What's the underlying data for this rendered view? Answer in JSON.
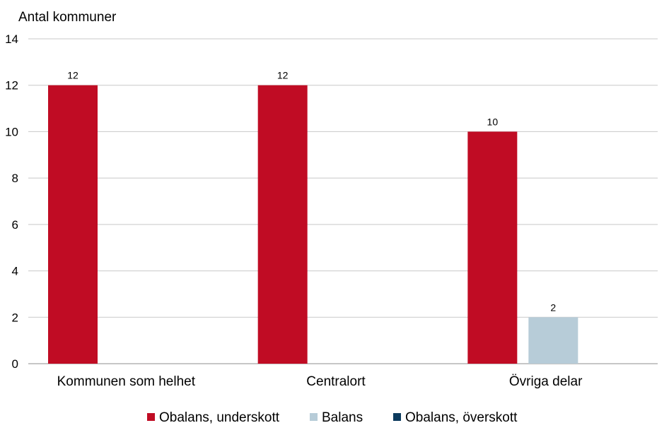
{
  "chart_data": {
    "type": "bar",
    "ylabel": "Antal kommuner",
    "xlabel": "",
    "ylim": [
      0,
      14
    ],
    "yticks": [
      0,
      2,
      4,
      6,
      8,
      10,
      12,
      14
    ],
    "grid": true,
    "legend_position": "bottom",
    "categories": [
      "Kommunen som helhet",
      "Centralort",
      "Övriga delar"
    ],
    "series": [
      {
        "name": "Obalans, underskott",
        "color": "#c00c24",
        "values": [
          12,
          12,
          10
        ]
      },
      {
        "name": "Balans",
        "color": "#b7ccd8",
        "values": [
          null,
          null,
          2
        ]
      },
      {
        "name": "Obalans, överskott",
        "color": "#0d3b5e",
        "values": [
          null,
          null,
          null
        ]
      }
    ]
  }
}
